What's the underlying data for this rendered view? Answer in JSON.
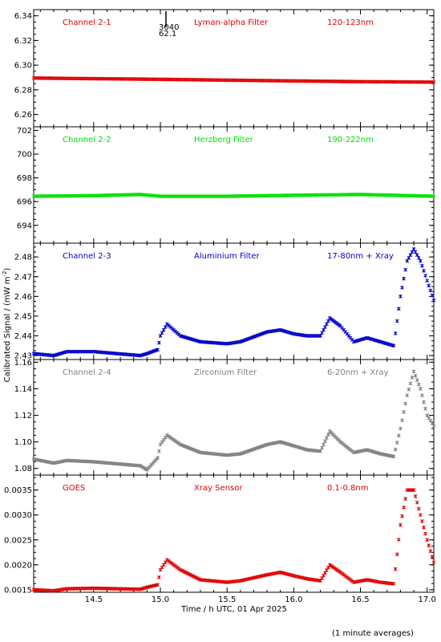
{
  "figure": {
    "ylabel": "Calibrated Signal / (mW m",
    "ylabel_sup": "-2",
    "ylabel_close": ")",
    "xlabel": "Time / h UTC, 01 Apr 2025",
    "footnote": "(1 minute averages)",
    "annotation": {
      "top": "3040",
      "bottom": "62.1"
    }
  },
  "colors": {
    "red": "#e00000",
    "green": "#00e000",
    "blue": "#0000c8",
    "gray": "#808080"
  },
  "chart_data": [
    {
      "type": "scatter",
      "channel": "Channel 2-1",
      "filter": "Lyman-alpha Filter",
      "band": "120-123nm",
      "color": "#e00000",
      "xlim": [
        14.05,
        17.05
      ],
      "ylim": [
        6.25,
        6.345
      ],
      "yticks": [
        6.26,
        6.28,
        6.3,
        6.32,
        6.34
      ],
      "ytick_labels": [
        "6.26",
        "6.28",
        "6.30",
        "6.32",
        "6.34"
      ],
      "series": [
        {
          "x": [
            14.05,
            15.0,
            15.5,
            16.0,
            16.5,
            17.05
          ],
          "y": [
            6.2895,
            6.2885,
            6.2878,
            6.2872,
            6.2866,
            6.2862
          ]
        }
      ]
    },
    {
      "type": "scatter",
      "channel": "Channel 2-2",
      "filter": "Herzberg Filter",
      "band": "190-222nm",
      "color": "#00e000",
      "xlim": [
        14.05,
        17.05
      ],
      "ylim": [
        692.5,
        702.3
      ],
      "yticks": [
        694,
        696,
        698,
        700,
        702
      ],
      "ytick_labels": [
        "694",
        "696",
        "698",
        "700",
        "702"
      ],
      "series": [
        {
          "x": [
            14.05,
            14.5,
            14.85,
            15.0,
            15.5,
            16.13,
            16.5,
            17.05
          ],
          "y": [
            696.45,
            696.5,
            696.6,
            696.45,
            696.45,
            696.55,
            696.6,
            696.45
          ]
        }
      ]
    },
    {
      "type": "scatter",
      "channel": "Channel 2-3",
      "filter": "Aluminium Filter",
      "band": "17-80nm + Xray",
      "color": "#0000c8",
      "xlim": [
        14.05,
        17.05
      ],
      "ylim": [
        2.428,
        2.487
      ],
      "yticks": [
        2.43,
        2.44,
        2.45,
        2.46,
        2.47,
        2.48
      ],
      "ytick_labels": [
        "2.43",
        "2.44",
        "2.45",
        "2.46",
        "2.47",
        "2.48"
      ],
      "series": [
        {
          "x": [
            14.05,
            14.2,
            14.3,
            14.5,
            14.85,
            14.9,
            14.98,
            15.0,
            15.05,
            15.15,
            15.3,
            15.5,
            15.6,
            15.8,
            15.9,
            16.0,
            16.1,
            16.2,
            16.27,
            16.35,
            16.45,
            16.55,
            16.65,
            16.75,
            16.8,
            16.85,
            16.9,
            16.95,
            17.0,
            17.05
          ],
          "y": [
            2.431,
            2.43,
            2.432,
            2.432,
            2.43,
            2.431,
            2.433,
            2.44,
            2.446,
            2.44,
            2.437,
            2.436,
            2.437,
            2.442,
            2.443,
            2.441,
            2.44,
            2.44,
            2.449,
            2.445,
            2.437,
            2.439,
            2.437,
            2.435,
            2.46,
            2.478,
            2.484,
            2.478,
            2.468,
            2.458
          ]
        }
      ]
    },
    {
      "type": "scatter",
      "channel": "Channel 2-4",
      "filter": "Zirconium Filter",
      "band": "6-20nm + Xray",
      "color": "#808080",
      "xlim": [
        14.05,
        17.05
      ],
      "ylim": [
        1.075,
        1.162
      ],
      "yticks": [
        1.08,
        1.1,
        1.12,
        1.14,
        1.16
      ],
      "ytick_labels": [
        "1.08",
        "1.10",
        "1.12",
        "1.14",
        "1.16"
      ],
      "series": [
        {
          "x": [
            14.05,
            14.2,
            14.3,
            14.5,
            14.85,
            14.9,
            14.98,
            15.0,
            15.05,
            15.15,
            15.3,
            15.5,
            15.6,
            15.8,
            15.9,
            16.0,
            16.1,
            16.2,
            16.27,
            16.35,
            16.45,
            16.55,
            16.65,
            16.75,
            16.8,
            16.85,
            16.9,
            16.95,
            17.0,
            17.05
          ],
          "y": [
            1.087,
            1.084,
            1.086,
            1.085,
            1.082,
            1.079,
            1.088,
            1.098,
            1.105,
            1.098,
            1.092,
            1.09,
            1.091,
            1.098,
            1.1,
            1.097,
            1.094,
            1.093,
            1.108,
            1.1,
            1.092,
            1.094,
            1.091,
            1.089,
            1.11,
            1.135,
            1.153,
            1.14,
            1.12,
            1.112
          ]
        }
      ]
    },
    {
      "type": "scatter",
      "channel": "GOES",
      "filter": "Xray Sensor",
      "band": "0.1-0.8nm",
      "color": "#e00000",
      "xlim": [
        14.05,
        17.05
      ],
      "ylim": [
        0.00145,
        0.0038
      ],
      "yticks": [
        0.0015,
        0.002,
        0.0025,
        0.003,
        0.0035
      ],
      "ytick_labels": [
        "0.0015",
        "0.0020",
        "0.0025",
        "0.0030",
        "0.0035"
      ],
      "xticks": [
        14.5,
        15.0,
        15.5,
        16.0,
        16.5,
        17.0
      ],
      "xtick_labels": [
        "14.5",
        "15.0",
        "15.5",
        "16.0",
        "16.5",
        "17.0"
      ],
      "series": [
        {
          "x": [
            14.05,
            14.2,
            14.3,
            14.5,
            14.85,
            14.9,
            14.98,
            15.0,
            15.05,
            15.15,
            15.3,
            15.5,
            15.6,
            15.8,
            15.9,
            16.0,
            16.1,
            16.2,
            16.27,
            16.35,
            16.45,
            16.55,
            16.65,
            16.75,
            16.8,
            16.85,
            16.9,
            16.95,
            17.0,
            17.05
          ],
          "y": [
            0.0015,
            0.00148,
            0.00152,
            0.00153,
            0.00151,
            0.00155,
            0.0016,
            0.0019,
            0.0021,
            0.0019,
            0.0017,
            0.00165,
            0.00168,
            0.0018,
            0.00185,
            0.00178,
            0.00172,
            0.00168,
            0.002,
            0.00185,
            0.00165,
            0.0017,
            0.00165,
            0.00162,
            0.0028,
            0.0035,
            0.0035,
            0.003,
            0.0025,
            0.00205
          ]
        }
      ]
    }
  ]
}
